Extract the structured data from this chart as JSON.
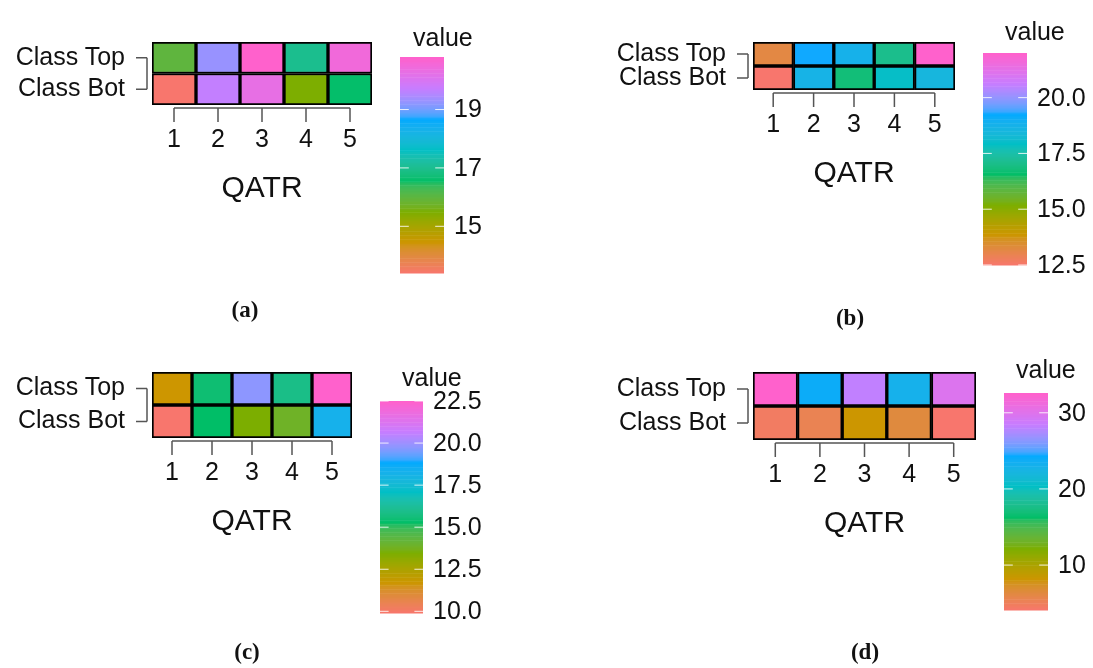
{
  "chart_data": [
    {
      "type": "heatmap",
      "categories": [
        "1",
        "2",
        "3",
        "4",
        "5"
      ],
      "y_categories": [
        "Class Top",
        "Class Bot"
      ],
      "cells": [
        [
          16.0,
          19.3,
          20.8,
          17.0,
          20.5
        ],
        [
          13.4,
          19.7,
          20.3,
          15.5,
          16.6
        ]
      ],
      "xlabel": "QATR",
      "clabel": "value",
      "clim": [
        13.4,
        20.8
      ],
      "cticks": [
        15,
        17,
        19
      ],
      "annotations": [
        "(a)"
      ]
    },
    {
      "type": "heatmap",
      "categories": [
        "1",
        "2",
        "3",
        "4",
        "5"
      ],
      "y_categories": [
        "Class Top",
        "Class Bot"
      ],
      "cells": [
        [
          13.2,
          19.3,
          18.8,
          17.1,
          22.0
        ],
        [
          12.5,
          18.7,
          16.8,
          18.0,
          18.5
        ]
      ],
      "xlabel": "QATR",
      "clabel": "value",
      "clim": [
        12.5,
        22.0
      ],
      "cticks": [
        12.5,
        {
          "value": 15,
          "label": "15.0"
        },
        17.5,
        {
          "value": 20,
          "label": "20.0"
        }
      ],
      "annotations": [
        "(b)"
      ]
    },
    {
      "type": "heatmap",
      "categories": [
        "1",
        "2",
        "3",
        "4",
        "5"
      ],
      "y_categories": [
        "Class Top",
        "Class Bot"
      ],
      "cells": [
        [
          11.7,
          15.5,
          19.8,
          15.9,
          22.5
        ],
        [
          9.9,
          15.3,
          13.5,
          13.9,
          18.3
        ]
      ],
      "xlabel": "QATR",
      "clabel": "value",
      "clim": [
        9.9,
        22.5
      ],
      "cticks": [
        {
          "value": 10,
          "label": "10.0"
        },
        12.5,
        {
          "value": 15,
          "label": "15.0"
        },
        17.5,
        {
          "value": 20,
          "label": "20.0"
        },
        22.5
      ],
      "annotations": [
        "(c)"
      ]
    },
    {
      "type": "heatmap",
      "categories": [
        "1",
        "2",
        "3",
        "4",
        "5"
      ],
      "y_categories": [
        "Class Top",
        "Class Bot"
      ],
      "cells": [
        [
          32.6,
          24.0,
          28.3,
          23.1,
          29.9
        ],
        [
          4.7,
          5.5,
          8.2,
          6.5,
          4.1
        ]
      ],
      "xlabel": "QATR",
      "clabel": "value",
      "clim": [
        4.1,
        32.6
      ],
      "cticks": [
        10,
        20,
        30
      ],
      "annotations": [
        "(d)"
      ]
    }
  ]
}
